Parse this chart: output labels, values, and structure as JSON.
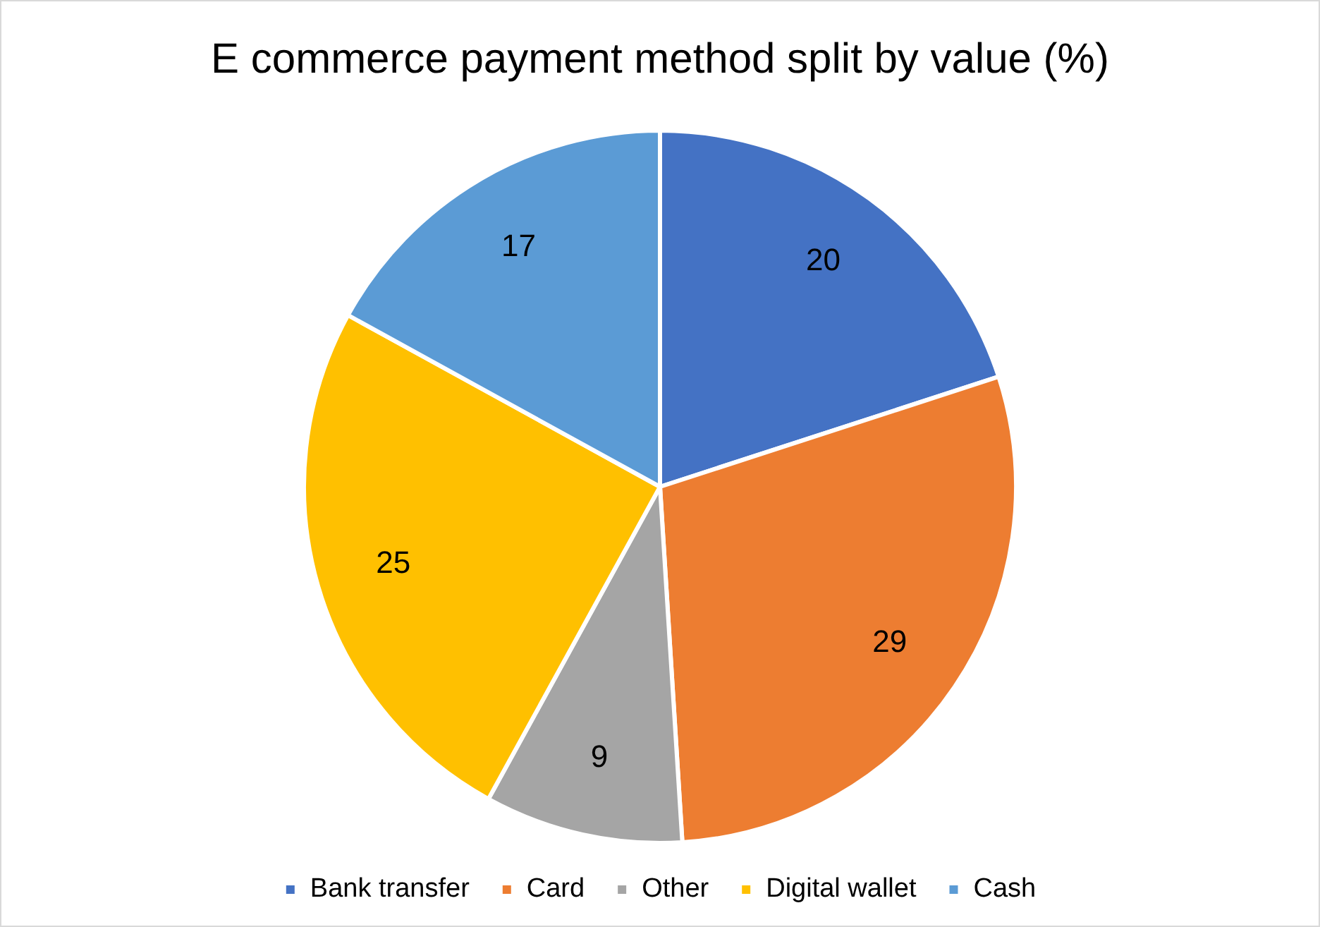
{
  "chart_data": {
    "type": "pie",
    "title": "E commerce payment method split by value (%)",
    "categories": [
      "Bank transfer",
      "Card",
      "Other",
      "Digital wallet",
      "Cash"
    ],
    "values": [
      20,
      29,
      9,
      25,
      17
    ],
    "colors": [
      "#4472c4",
      "#ed7d31",
      "#a5a5a5",
      "#ffc000",
      "#5b9bd5"
    ],
    "data_labels": true,
    "legend": "bottom"
  }
}
